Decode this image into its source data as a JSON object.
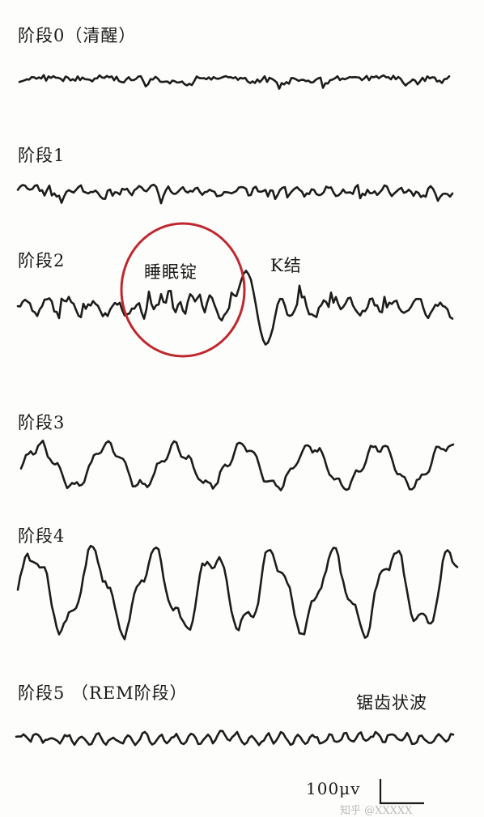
{
  "stages": [
    {
      "label": "阶段0（清醒）",
      "amplitude": 9,
      "roughness": 0.55,
      "kind": "awake"
    },
    {
      "label": "阶段1",
      "amplitude": 12,
      "roughness": 0.45,
      "kind": "light"
    },
    {
      "label": "阶段2",
      "amplitude": 18,
      "roughness": 0.4,
      "kind": "stage2"
    },
    {
      "label": "阶段3",
      "amplitude": 28,
      "roughness": 0.35,
      "kind": "slow"
    },
    {
      "label": "阶段4",
      "amplitude": 48,
      "roughness": 0.3,
      "kind": "delta"
    },
    {
      "label": "阶段5 （REM阶段）",
      "amplitude": 14,
      "roughness": 0.45,
      "kind": "rem"
    }
  ],
  "annotations": {
    "spindle": "睡眠锭",
    "k_complex": "K结",
    "sawtooth": "锯齿状波"
  },
  "scale_bar": {
    "label": "100μv"
  },
  "watermark": "知乎 @XXXXX",
  "colors": {
    "trace": "#1c1c1c",
    "circle": "#c0282e",
    "background": "#fdfdfb"
  }
}
